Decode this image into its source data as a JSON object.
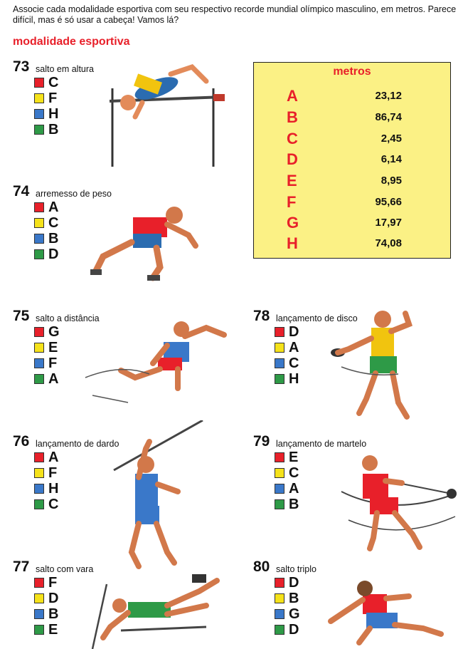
{
  "intro": "Associe cada modalidade esportiva com seu respectivo recorde mundial olímpico masculino, em metros. Parece difícil, mas é só usar a cabeça! Vamos lá?",
  "heading": "modalidade esportiva",
  "colors": {
    "red": "#e8202a",
    "yellow": "#f5e21a",
    "blue": "#3a78c9",
    "green": "#2e9a47",
    "table_bg": "#fbf185"
  },
  "questions": [
    {
      "num": "73",
      "name": "salto em altura",
      "options": [
        "C",
        "F",
        "H",
        "B"
      ]
    },
    {
      "num": "74",
      "name": "arremesso de peso",
      "options": [
        "A",
        "C",
        "B",
        "D"
      ]
    },
    {
      "num": "75",
      "name": "salto a distância",
      "options": [
        "G",
        "E",
        "F",
        "A"
      ]
    },
    {
      "num": "76",
      "name": "lançamento de dardo",
      "options": [
        "A",
        "F",
        "H",
        "C"
      ]
    },
    {
      "num": "77",
      "name": "salto com vara",
      "options": [
        "F",
        "D",
        "B",
        "E"
      ]
    },
    {
      "num": "78",
      "name": "lançamento de disco",
      "options": [
        "D",
        "A",
        "C",
        "H"
      ]
    },
    {
      "num": "79",
      "name": "lançamento de martelo",
      "options": [
        "E",
        "C",
        "A",
        "B"
      ]
    },
    {
      "num": "80",
      "name": "salto triplo",
      "options": [
        "D",
        "B",
        "G",
        "D"
      ]
    }
  ],
  "table": {
    "header": "metros",
    "rows": [
      {
        "letter": "A",
        "value": "23,12"
      },
      {
        "letter": "B",
        "value": "86,74"
      },
      {
        "letter": "C",
        "value": "2,45"
      },
      {
        "letter": "D",
        "value": "6,14"
      },
      {
        "letter": "E",
        "value": "8,95"
      },
      {
        "letter": "F",
        "value": "95,66"
      },
      {
        "letter": "G",
        "value": "17,97"
      },
      {
        "letter": "H",
        "value": "74,08"
      }
    ]
  }
}
